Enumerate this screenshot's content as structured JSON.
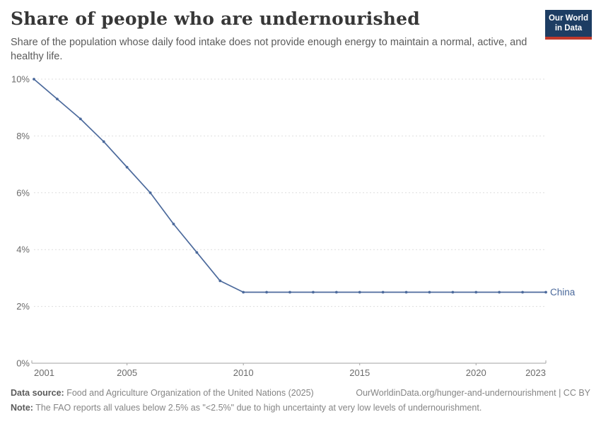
{
  "header": {
    "title": "Share of people who are undernourished",
    "subtitle": "Share of the population whose daily food intake does not provide enough energy to maintain a normal, active, and healthy life.",
    "logo": {
      "line1": "Our World",
      "line2": "in Data"
    }
  },
  "chart_data": {
    "type": "line",
    "title": "Share of people who are undernourished",
    "xlabel": "",
    "ylabel": "",
    "xlim": [
      2001,
      2023
    ],
    "ylim": [
      0,
      10
    ],
    "x_ticks": [
      2001,
      2005,
      2010,
      2015,
      2020,
      2023
    ],
    "y_ticks": [
      0,
      2,
      4,
      6,
      8,
      10
    ],
    "y_tick_suffix": "%",
    "grid": "horizontal-dashed",
    "legend_position": "end-of-line",
    "series": [
      {
        "name": "China",
        "color": "#4C6A9C",
        "x": [
          2001,
          2002,
          2003,
          2004,
          2005,
          2006,
          2007,
          2008,
          2009,
          2010,
          2011,
          2012,
          2013,
          2014,
          2015,
          2016,
          2017,
          2018,
          2019,
          2020,
          2021,
          2022,
          2023
        ],
        "values": [
          10.0,
          9.3,
          8.6,
          7.8,
          6.9,
          6.0,
          4.9,
          3.9,
          2.9,
          2.5,
          2.5,
          2.5,
          2.5,
          2.5,
          2.5,
          2.5,
          2.5,
          2.5,
          2.5,
          2.5,
          2.5,
          2.5,
          2.5
        ]
      }
    ]
  },
  "colors": {
    "line": "#4C6A9C",
    "grid": "#dedede",
    "axis": "#a3a3a3",
    "tick_label": "#6b6b6b",
    "logo_bg": "#1d3d63",
    "logo_bar": "#c0392b"
  },
  "footer": {
    "datasource_label": "Data source:",
    "datasource_text": " Food and Agriculture Organization of the United Nations (2025)",
    "link_text": "OurWorldinData.org/hunger-and-undernourishment | CC BY",
    "note_label": "Note:",
    "note_text": " The FAO reports all values below 2.5% as \"<2.5%\" due to high uncertainty at very low levels of undernourishment."
  }
}
